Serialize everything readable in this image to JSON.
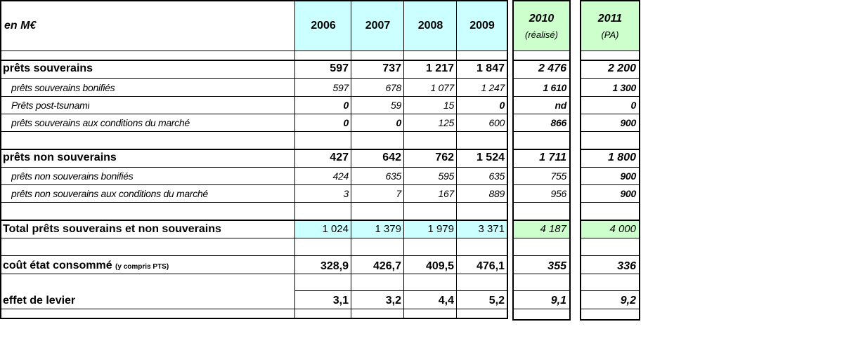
{
  "header": {
    "unit_label": "en M€",
    "years": [
      "2006",
      "2007",
      "2008",
      "2009"
    ],
    "col2010": {
      "year": "2010",
      "note": "(réalisé)"
    },
    "col2011": {
      "year": "2011",
      "note": "(PA)"
    }
  },
  "rows": {
    "ps": {
      "label": "prêts souverains",
      "v": [
        "597",
        "737",
        "1 217",
        "1 847"
      ],
      "v2010": "2 476",
      "v2011": "2 200"
    },
    "psb": {
      "label": "prêts souverains bonifiés",
      "v": [
        "597",
        "678",
        "1 077",
        "1 247"
      ],
      "v2010": "1 610",
      "v2011": "1 300"
    },
    "pts": {
      "label": "Prêts post-tsunami",
      "v": [
        "0",
        "59",
        "15",
        "0"
      ],
      "v2010": "nd",
      "v2011": "0"
    },
    "psm": {
      "label": "prêts souverains aux conditions du marché",
      "v": [
        "0",
        "0",
        "125",
        "600"
      ],
      "v2010": "866",
      "v2011": "900"
    },
    "pns": {
      "label": "prêts non souverains",
      "v": [
        "427",
        "642",
        "762",
        "1 524"
      ],
      "v2010": "1 711",
      "v2011": "1 800"
    },
    "pnsb": {
      "label": "prêts non souverains bonifiés",
      "v": [
        "424",
        "635",
        "595",
        "635"
      ],
      "v2010": "755",
      "v2011": "900"
    },
    "pnsm": {
      "label": "prêts non souverains aux conditions du marché",
      "v": [
        "3",
        "7",
        "167",
        "889"
      ],
      "v2010": "956",
      "v2011": "900"
    },
    "tot": {
      "label": "Total prêts souverains et non souverains",
      "v": [
        "1 024",
        "1 379",
        "1 979",
        "3 371"
      ],
      "v2010": "4 187",
      "v2011": "4 000"
    },
    "cout": {
      "label": "coût état consommé",
      "label_small": "(y compris PTS)",
      "v": [
        "328,9",
        "426,7",
        "409,5",
        "476,1"
      ],
      "v2010": "355",
      "v2011": "336"
    },
    "lev": {
      "label": "effet de levier",
      "v": [
        "3,1",
        "3,2",
        "4,4",
        "5,2"
      ],
      "v2010": "9,1",
      "v2011": "9,2"
    }
  }
}
